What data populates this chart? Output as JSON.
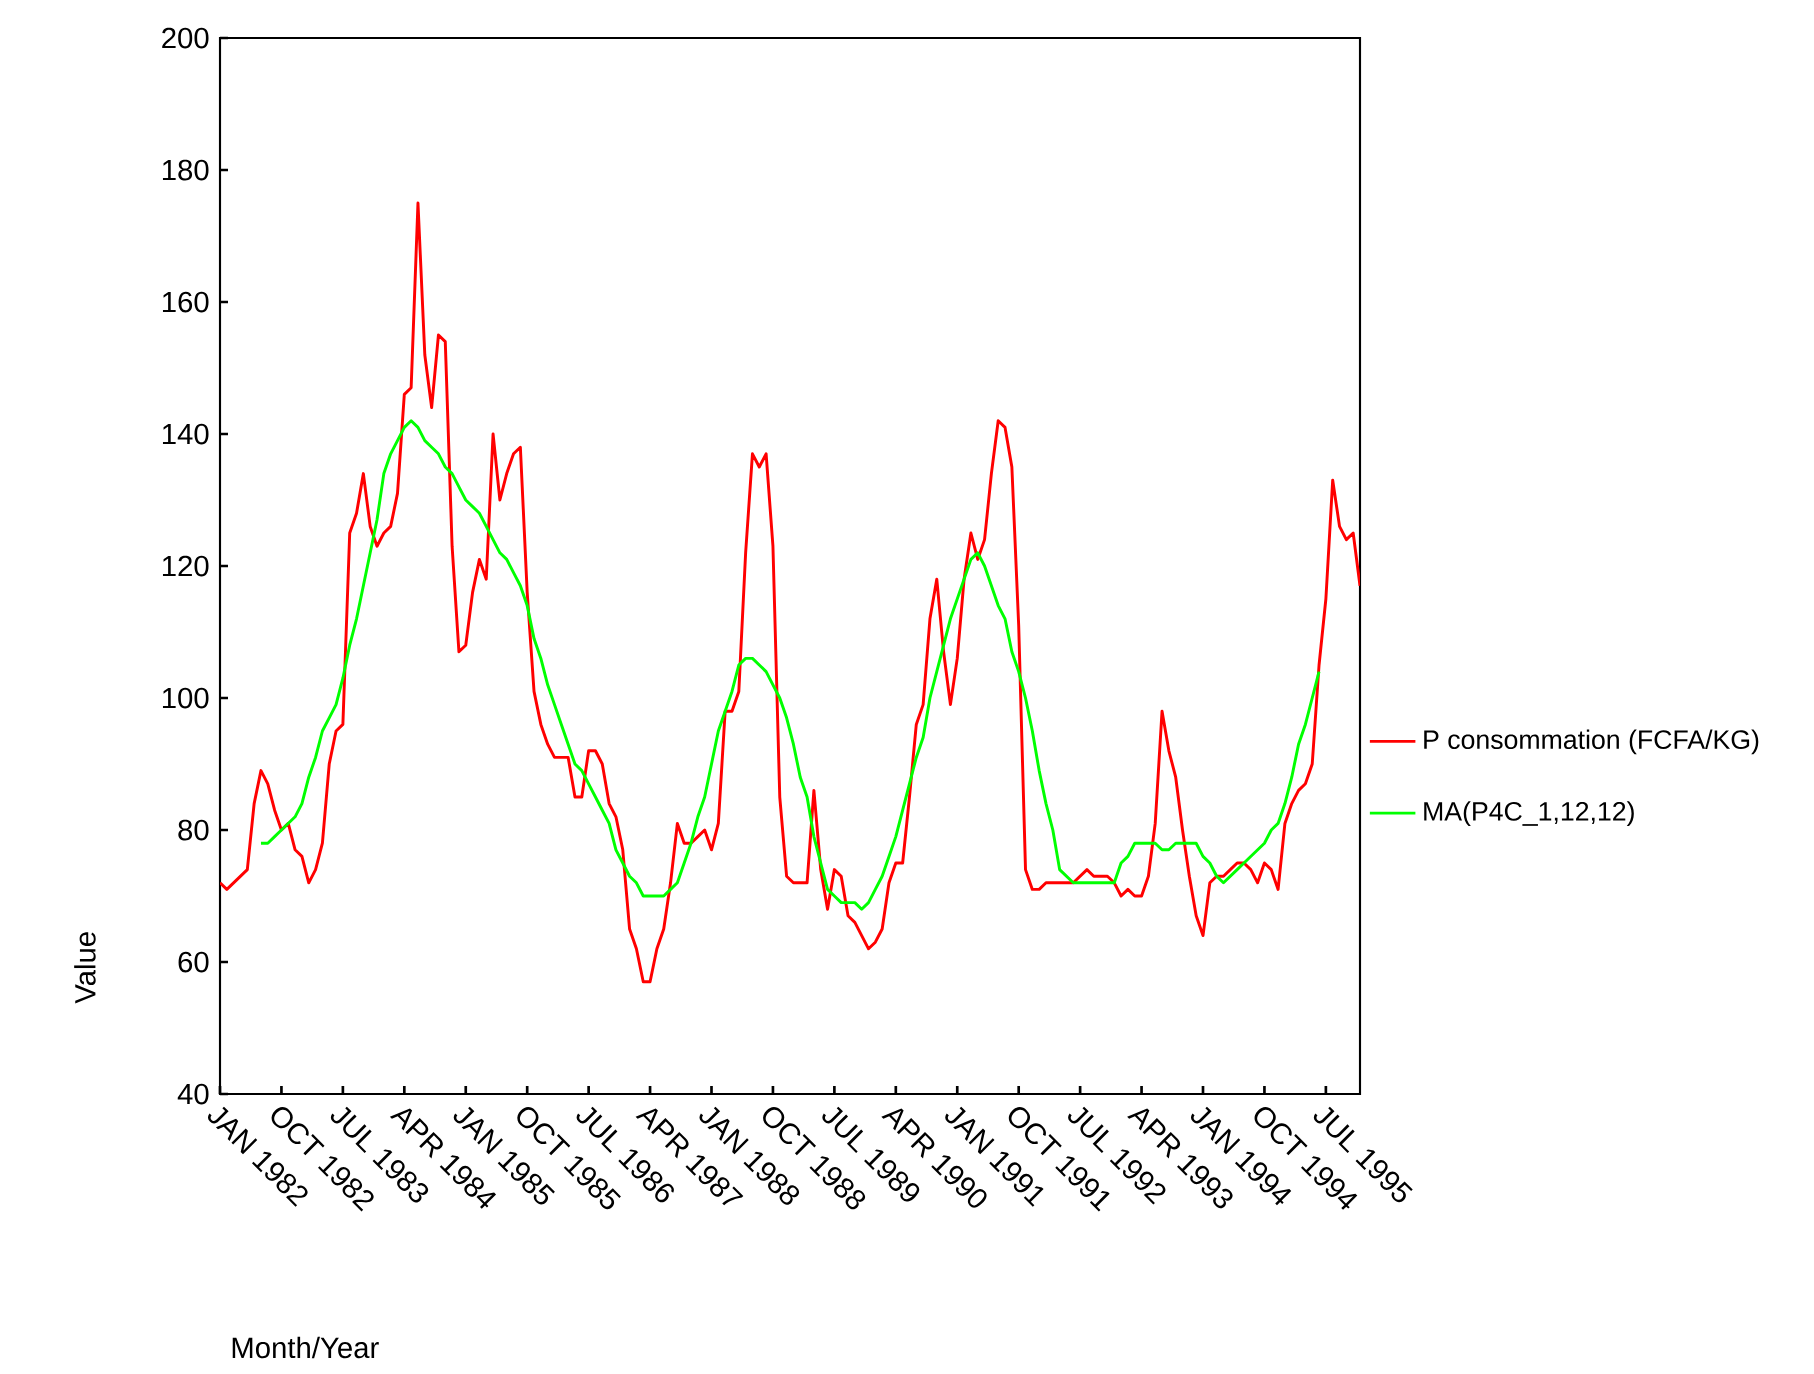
{
  "chart_data": {
    "type": "line",
    "xlabel": "Month/Year",
    "ylabel": "Value",
    "categories": [
      "JAN 1982",
      null,
      null,
      null,
      null,
      null,
      null,
      null,
      null,
      "OCT 1982",
      null,
      null,
      null,
      null,
      null,
      null,
      null,
      null,
      "JUL 1983",
      null,
      null,
      null,
      null,
      null,
      null,
      null,
      null,
      "APR 1984",
      null,
      null,
      null,
      null,
      null,
      null,
      null,
      null,
      "JAN 1985",
      null,
      null,
      null,
      null,
      null,
      null,
      null,
      null,
      "OCT 1985",
      null,
      null,
      null,
      null,
      null,
      null,
      null,
      null,
      "JUL 1986",
      null,
      null,
      null,
      null,
      null,
      null,
      null,
      null,
      "APR 1987",
      null,
      null,
      null,
      null,
      null,
      null,
      null,
      null,
      "JAN 1988",
      null,
      null,
      null,
      null,
      null,
      null,
      null,
      null,
      "OCT 1988",
      null,
      null,
      null,
      null,
      null,
      null,
      null,
      null,
      "JUL 1989",
      null,
      null,
      null,
      null,
      null,
      null,
      null,
      null,
      "APR 1990",
      null,
      null,
      null,
      null,
      null,
      null,
      null,
      null,
      "JAN 1991",
      null,
      null,
      null,
      null,
      null,
      null,
      null,
      null,
      "OCT 1991",
      null,
      null,
      null,
      null,
      null,
      null,
      null,
      null,
      "JUL 1992",
      null,
      null,
      null,
      null,
      null,
      null,
      null,
      null,
      "APR 1993",
      null,
      null,
      null,
      null,
      null,
      null,
      null,
      null,
      "JAN 1994",
      null,
      null,
      null,
      null,
      null,
      null,
      null,
      null,
      "OCT 1994",
      null,
      null,
      null,
      null,
      null,
      null,
      null,
      null,
      "JUL 1995",
      null,
      null,
      null,
      null,
      null
    ],
    "series": [
      {
        "name": "P consommation (FCFA/KG)",
        "color": "#ff0000",
        "values": [
          72,
          71,
          72,
          73,
          74,
          84,
          89,
          87,
          83,
          80,
          81,
          77,
          76,
          72,
          74,
          78,
          90,
          95,
          96,
          125,
          128,
          134,
          126,
          123,
          125,
          126,
          131,
          146,
          147,
          175,
          152,
          144,
          155,
          154,
          123,
          107,
          108,
          116,
          121,
          118,
          140,
          130,
          134,
          137,
          138,
          116,
          101,
          96,
          93,
          91,
          91,
          91,
          85,
          85,
          92,
          92,
          90,
          84,
          82,
          77,
          65,
          62,
          57,
          57,
          62,
          65,
          72,
          81,
          78,
          78,
          79,
          80,
          77,
          81,
          98,
          98,
          101,
          122,
          137,
          135,
          137,
          123,
          85,
          73,
          72,
          72,
          72,
          86,
          74,
          68,
          74,
          73,
          67,
          66,
          64,
          62,
          63,
          65,
          72,
          75,
          75,
          85,
          96,
          99,
          112,
          118,
          107,
          99,
          106,
          118,
          125,
          121,
          124,
          134,
          142,
          141,
          135,
          111,
          74,
          71,
          71,
          72,
          72,
          72,
          72,
          72,
          73,
          74,
          73,
          73,
          73,
          72,
          70,
          71,
          70,
          70,
          73,
          81,
          98,
          92,
          88,
          80,
          73,
          67,
          64,
          72,
          73,
          73,
          74,
          75,
          75,
          74,
          72,
          75,
          74,
          71,
          81,
          84,
          86,
          87,
          90,
          105,
          115,
          133,
          126,
          124,
          125,
          117
        ]
      },
      {
        "name": "MA(P4C_1,12,12)",
        "color": "#00ff00",
        "values": [
          null,
          null,
          null,
          null,
          null,
          null,
          78,
          78,
          79,
          80,
          81,
          82,
          84,
          88,
          91,
          95,
          97,
          99,
          103,
          108,
          112,
          117,
          122,
          127,
          134,
          137,
          139,
          141,
          142,
          141,
          139,
          138,
          137,
          135,
          134,
          132,
          130,
          129,
          128,
          126,
          124,
          122,
          121,
          119,
          117,
          114,
          109,
          106,
          102,
          99,
          96,
          93,
          90,
          89,
          87,
          85,
          83,
          81,
          77,
          75,
          73,
          72,
          70,
          70,
          70,
          70,
          71,
          72,
          75,
          78,
          82,
          85,
          90,
          95,
          98,
          101,
          105,
          106,
          106,
          105,
          104,
          102,
          100,
          97,
          93,
          88,
          85,
          79,
          75,
          71,
          70,
          69,
          69,
          69,
          68,
          69,
          71,
          73,
          76,
          79,
          83,
          87,
          91,
          94,
          100,
          104,
          108,
          112,
          115,
          118,
          121,
          122,
          120,
          117,
          114,
          112,
          107,
          104,
          100,
          95,
          89,
          84,
          80,
          74,
          73,
          72,
          72,
          72,
          72,
          72,
          72,
          72,
          75,
          76,
          78,
          78,
          78,
          78,
          77,
          77,
          78,
          78,
          78,
          78,
          76,
          75,
          73,
          72,
          73,
          74,
          75,
          76,
          77,
          78,
          80,
          81,
          84,
          88,
          93,
          96,
          100,
          104,
          null,
          null,
          null,
          null,
          null,
          null
        ]
      }
    ],
    "ylim": [
      40,
      200
    ],
    "yticks": [
      40,
      60,
      80,
      100,
      120,
      140,
      160,
      180,
      200
    ],
    "legend": "right",
    "marker": "none",
    "line_style": "solid"
  }
}
